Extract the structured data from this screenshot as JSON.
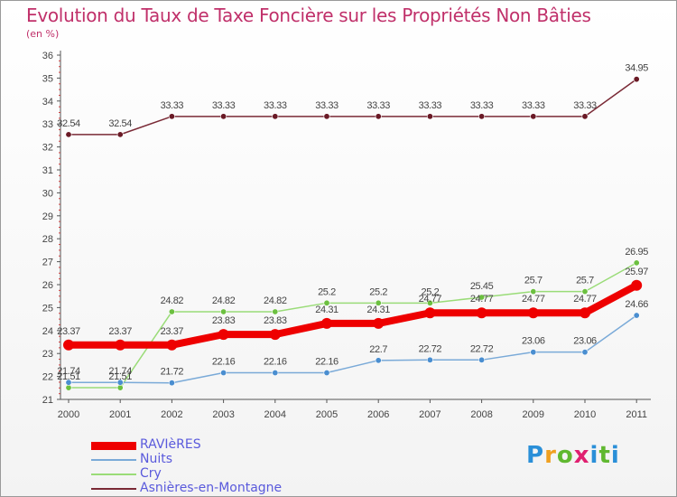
{
  "title": "Evolution du Taux de Taxe Foncière sur les Propriétés Non Bâties",
  "unit": "(en %)",
  "logo": "Proxiti",
  "chart_data": {
    "type": "line",
    "title": "Evolution du Taux de Taxe Foncière sur les Propriétés Non Bâties",
    "ylabel": "(en %)",
    "xlabel": "",
    "ylim": [
      21,
      36
    ],
    "yticks": [
      "21",
      "22",
      "23",
      "24",
      "25",
      "26",
      "27",
      "28",
      "29",
      "30",
      "31",
      "32",
      "33",
      "34",
      "35",
      "36"
    ],
    "categories": [
      "2000",
      "2001",
      "2002",
      "2003",
      "2004",
      "2005",
      "2006",
      "2007",
      "2008",
      "2009",
      "2010",
      "2011"
    ],
    "grid": false,
    "legend_position": "bottom-left",
    "series": [
      {
        "name": "Asnières-en-Montagne",
        "color": "#7a2a36",
        "marker": "#6a1a26",
        "values": [
          32.54,
          32.54,
          33.33,
          33.33,
          33.33,
          33.33,
          33.33,
          33.33,
          33.33,
          33.33,
          33.33,
          34.95
        ],
        "labels": [
          "32.54",
          "32.54",
          "33.33",
          "33.33",
          "33.33",
          "33.33",
          "33.33",
          "33.33",
          "33.33",
          "33.33",
          "33.33",
          "34.95"
        ]
      },
      {
        "name": "Cry",
        "color": "#9adc78",
        "marker": "#6cc040",
        "values": [
          21.51,
          21.51,
          24.82,
          24.82,
          24.82,
          25.2,
          25.2,
          25.2,
          25.45,
          25.7,
          25.7,
          26.95
        ],
        "labels": [
          "21.51",
          "21.51",
          "24.82",
          "24.82",
          "24.82",
          "25.2",
          "25.2",
          "25.2",
          "25.45",
          "25.7",
          "25.7",
          "26.95"
        ]
      },
      {
        "name": "Nuits",
        "color": "#7aaad8",
        "marker": "#4a8ed0",
        "values": [
          21.74,
          21.74,
          21.72,
          22.16,
          22.16,
          22.16,
          22.7,
          22.72,
          22.72,
          23.06,
          23.06,
          24.66
        ],
        "labels": [
          "21.74",
          "21.74",
          "21.72",
          "22.16",
          "22.16",
          "22.16",
          "22.7",
          "22.72",
          "22.72",
          "23.06",
          "23.06",
          "24.66"
        ]
      },
      {
        "name": "RAVIèRES",
        "color": "#ee0000",
        "marker": "#ee0000",
        "values": [
          23.37,
          23.37,
          23.37,
          23.83,
          23.83,
          24.31,
          24.31,
          24.77,
          24.77,
          24.77,
          24.77,
          25.97
        ],
        "labels": [
          "23.37",
          "23.37",
          "23.37",
          "23.83",
          "23.83",
          "24.31",
          "24.31",
          "24.77",
          "24.77",
          "24.77",
          "24.77",
          "25.97"
        ]
      }
    ],
    "legend": [
      "RAVIèRES",
      "Nuits",
      "Cry",
      "Asnières-en-Montagne"
    ]
  }
}
